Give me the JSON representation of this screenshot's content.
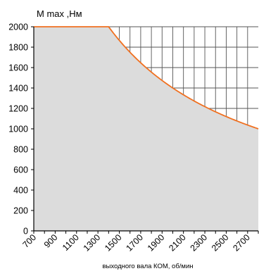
{
  "chart_data": {
    "type": "area",
    "title": "",
    "ylabel": "M max ,Нм",
    "xlabel": "выходного вала КОМ, об/мин",
    "xlim": [
      700,
      2800
    ],
    "ylim": [
      0,
      2000
    ],
    "x_ticks": [
      700,
      900,
      1100,
      1300,
      1500,
      1700,
      1900,
      2100,
      2300,
      2500,
      2700
    ],
    "y_ticks": [
      0,
      200,
      400,
      600,
      800,
      1000,
      1200,
      1400,
      1600,
      1800,
      2000
    ],
    "grid": "on",
    "legend": "none",
    "series": [
      {
        "x": [
          700,
          1400,
          1600,
          1800,
          2000,
          2200,
          2400,
          2600,
          2800
        ],
        "values": [
          2000,
          2000,
          1750,
          1556,
          1400,
          1273,
          1167,
          1077,
          1000
        ],
        "line_color": "#f07020",
        "fill_color": "#dcdcdc"
      }
    ]
  }
}
